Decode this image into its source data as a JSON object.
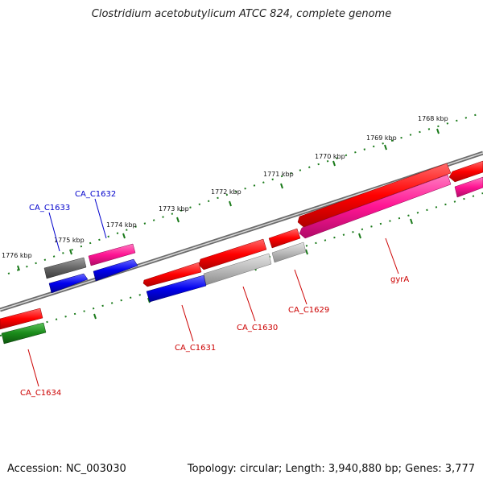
{
  "title": "Clostridium acetobutylicum ATCC 824, complete genome",
  "footer": {
    "accession": "Accession: NC_003030",
    "summary": "Topology: circular; Length: 3,940,880 bp; Genes: 3,777"
  },
  "scale_ticks": [
    "1768 kbp",
    "1769 kbp",
    "1770 kbp",
    "1771 kbp",
    "1772 kbp",
    "1773 kbp",
    "1774 kbp",
    "1775 kbp",
    "1776 kbp"
  ],
  "gene_labels": [
    {
      "name": "CA_C1633",
      "color": "#0000cc"
    },
    {
      "name": "CA_C1632",
      "color": "#0000cc"
    },
    {
      "name": "gyrA",
      "color": "#cc0000"
    },
    {
      "name": "CA_C1629",
      "color": "#cc0000"
    },
    {
      "name": "CA_C1630",
      "color": "#cc0000"
    },
    {
      "name": "CA_C1631",
      "color": "#cc0000"
    },
    {
      "name": "CA_C1634",
      "color": "#cc0000"
    }
  ],
  "colors": {
    "red": "#ff0000",
    "magenta": "#ff1493",
    "blue": "#0000ee",
    "dark_gray": "#666666",
    "light_gray": "#bbbbbb",
    "green": "#1a8a1a",
    "tick_green": "#1a7a1a",
    "backbone": "#888888"
  }
}
